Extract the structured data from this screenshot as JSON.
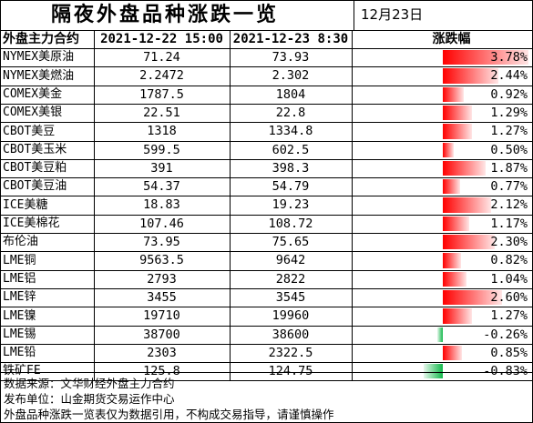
{
  "title": "隔夜外盘品种涨跌一览",
  "date": "12月23日",
  "headers": {
    "contract": "外盘主力合约",
    "time1": "2021-12-22 15:00",
    "time2": "2021-12-23 8:30",
    "change": "涨跌幅"
  },
  "rows": [
    {
      "name": "NYMEX美原油",
      "v1": "71.24",
      "v2": "73.93",
      "change": "3.78%",
      "pct": 3.78
    },
    {
      "name": "NYMEX美燃油",
      "v1": "2.2472",
      "v2": "2.302",
      "change": "2.44%",
      "pct": 2.44
    },
    {
      "name": "COMEX美金",
      "v1": "1787.5",
      "v2": "1804",
      "change": "0.92%",
      "pct": 0.92
    },
    {
      "name": "COMEX美银",
      "v1": "22.51",
      "v2": "22.8",
      "change": "1.29%",
      "pct": 1.29
    },
    {
      "name": "CBOT美豆",
      "v1": "1318",
      "v2": "1334.8",
      "change": "1.27%",
      "pct": 1.27
    },
    {
      "name": "CBOT美玉米",
      "v1": "599.5",
      "v2": "602.5",
      "change": "0.50%",
      "pct": 0.5
    },
    {
      "name": "CBOT美豆粕",
      "v1": "391",
      "v2": "398.3",
      "change": "1.87%",
      "pct": 1.87
    },
    {
      "name": "CBOT美豆油",
      "v1": "54.37",
      "v2": "54.79",
      "change": "0.77%",
      "pct": 0.77
    },
    {
      "name": "ICE美糖",
      "v1": "18.83",
      "v2": "19.23",
      "change": "2.12%",
      "pct": 2.12
    },
    {
      "name": "ICE美棉花",
      "v1": "107.46",
      "v2": "108.72",
      "change": "1.17%",
      "pct": 1.17
    },
    {
      "name": "布伦油",
      "v1": "73.95",
      "v2": "75.65",
      "change": "2.30%",
      "pct": 2.3
    },
    {
      "name": "LME铜",
      "v1": "9563.5",
      "v2": "9642",
      "change": "0.82%",
      "pct": 0.82
    },
    {
      "name": "LME铝",
      "v1": "2793",
      "v2": "2822",
      "change": "1.04%",
      "pct": 1.04
    },
    {
      "name": "LME锌",
      "v1": "3455",
      "v2": "3545",
      "change": "2.60%",
      "pct": 2.6
    },
    {
      "name": "LME镍",
      "v1": "19710",
      "v2": "19960",
      "change": "1.27%",
      "pct": 1.27
    },
    {
      "name": "LME锡",
      "v1": "38700",
      "v2": "38600",
      "change": "-0.26%",
      "pct": -0.26
    },
    {
      "name": "LME铅",
      "v1": "2303",
      "v2": "2322.5",
      "change": "0.85%",
      "pct": 0.85
    },
    {
      "name": "铁矿FE",
      "v1": "125.8",
      "v2": "124.75",
      "change": "-0.83%",
      "pct": -0.83
    }
  ],
  "footer": [
    "数据来源：文华财经外盘主力合约",
    "发布单位：山金期货交易运作中心",
    "外盘品种涨跌一览表仅为数据引用，不构成交易指导，请谨慎操作"
  ],
  "colors": {
    "up": "#ff0000",
    "down": "#12b84a",
    "grid": "#000000"
  }
}
